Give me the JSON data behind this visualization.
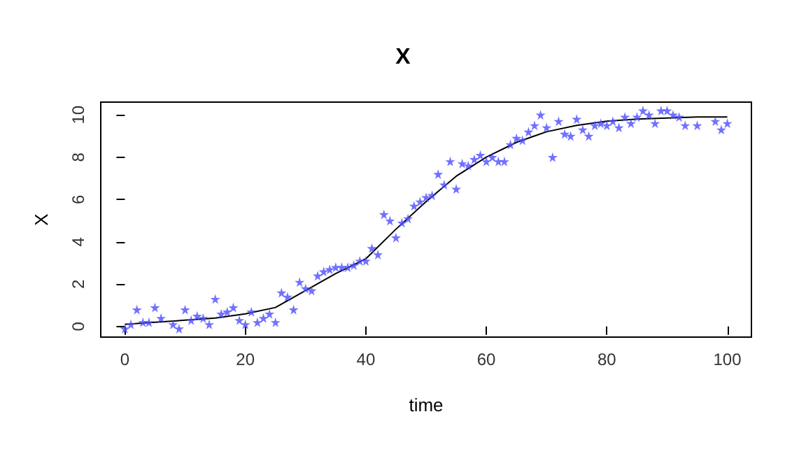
{
  "chart_data": {
    "type": "scatter",
    "title": "X",
    "xlabel": "time",
    "ylabel": "X",
    "xlim": [
      -4,
      104
    ],
    "ylim": [
      -0.5,
      10.6
    ],
    "xticks": [
      0,
      20,
      40,
      60,
      80,
      100
    ],
    "yticks": [
      0,
      2,
      4,
      6,
      8,
      10
    ],
    "grid": false,
    "series": [
      {
        "marker": "star",
        "color": "#4d4dff",
        "x": [
          0,
          1,
          2,
          3,
          4,
          5,
          6,
          8,
          9,
          10,
          11,
          12,
          13,
          14,
          15,
          16,
          17,
          18,
          19,
          20,
          21,
          22,
          23,
          24,
          25,
          26,
          27,
          28,
          29,
          30,
          31,
          32,
          33,
          34,
          35,
          36,
          37,
          38,
          39,
          40,
          41,
          42,
          43,
          44,
          45,
          46,
          47,
          48,
          49,
          50,
          51,
          52,
          53,
          54,
          55,
          56,
          57,
          58,
          59,
          60,
          61,
          62,
          63,
          64,
          65,
          66,
          67,
          68,
          69,
          70,
          71,
          72,
          73,
          74,
          75,
          76,
          77,
          78,
          79,
          80,
          81,
          82,
          83,
          84,
          85,
          86,
          87,
          88,
          89,
          90,
          91,
          92,
          93,
          95,
          98,
          99,
          100
        ],
        "values": [
          -0.1,
          0.1,
          0.8,
          0.2,
          0.2,
          0.9,
          0.4,
          0.1,
          -0.1,
          0.8,
          0.3,
          0.5,
          0.4,
          0.1,
          1.3,
          0.6,
          0.7,
          0.9,
          0.3,
          0.1,
          0.7,
          0.2,
          0.4,
          0.6,
          0.2,
          1.6,
          1.4,
          0.8,
          2.1,
          1.8,
          1.7,
          2.4,
          2.6,
          2.7,
          2.8,
          2.8,
          2.8,
          2.9,
          3.1,
          3.1,
          3.7,
          3.4,
          5.3,
          5.0,
          4.2,
          4.9,
          5.1,
          5.7,
          5.9,
          6.1,
          6.2,
          7.2,
          6.7,
          7.8,
          6.5,
          7.7,
          7.6,
          7.9,
          8.1,
          7.8,
          8.0,
          7.8,
          7.8,
          8.6,
          8.9,
          8.8,
          9.2,
          9.5,
          10.0,
          9.4,
          8.0,
          9.7,
          9.1,
          9.0,
          9.8,
          9.3,
          9.0,
          9.5,
          9.6,
          9.5,
          9.7,
          9.4,
          9.9,
          9.6,
          9.9,
          10.2,
          10.0,
          9.6,
          10.2,
          10.2,
          10.0,
          9.9,
          9.5,
          9.5,
          9.7,
          9.3,
          9.6
        ]
      },
      {
        "type": "line",
        "marker": "none",
        "line_style": "solid",
        "color": "#000000",
        "x": [
          0,
          5,
          10,
          15,
          20,
          25,
          30,
          35,
          40,
          45,
          50,
          55,
          60,
          65,
          70,
          75,
          80,
          85,
          90,
          95,
          100
        ],
        "values": [
          0.1,
          0.2,
          0.3,
          0.4,
          0.6,
          0.9,
          1.7,
          2.5,
          3.2,
          4.6,
          5.9,
          7.1,
          8.0,
          8.7,
          9.2,
          9.5,
          9.7,
          9.8,
          9.85,
          9.9,
          9.9
        ]
      }
    ]
  }
}
